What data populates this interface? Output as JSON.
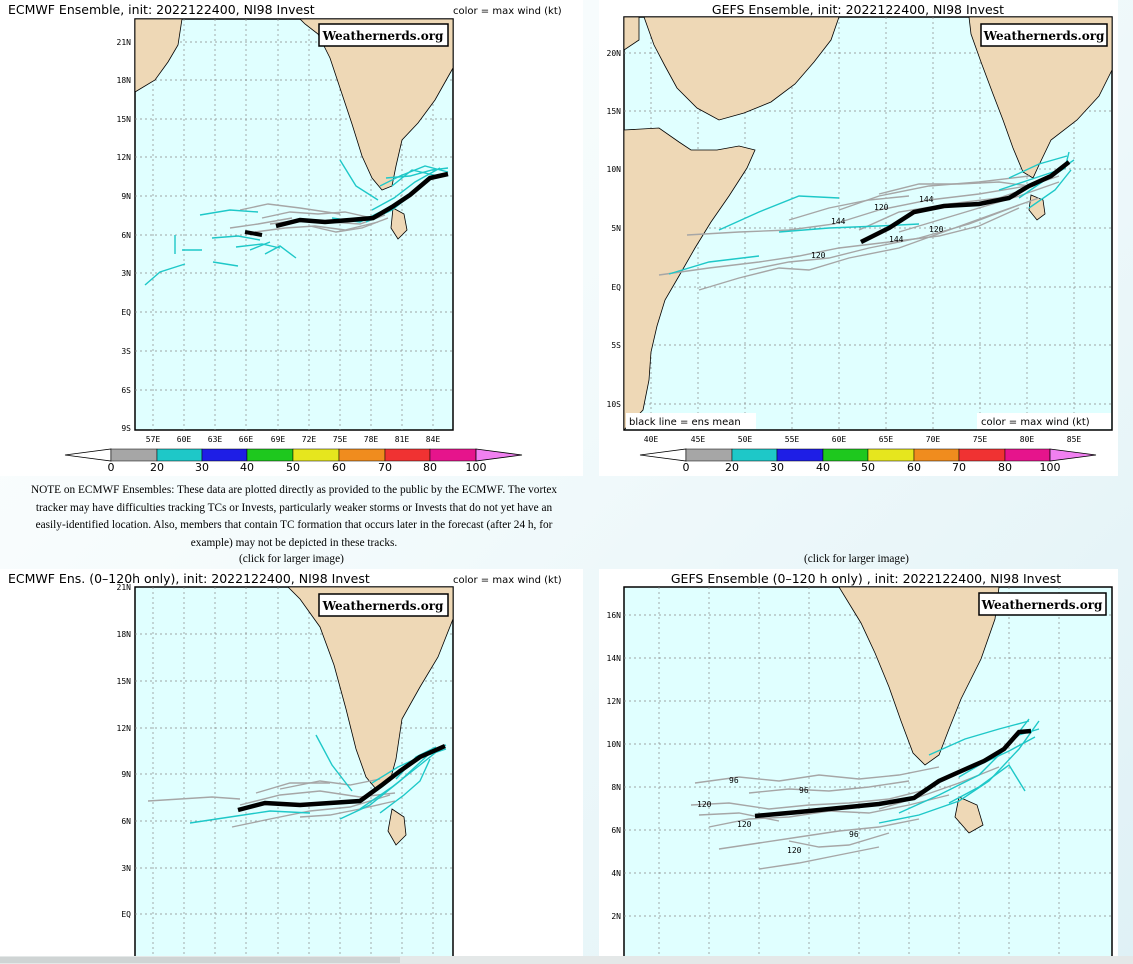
{
  "panels": [
    {
      "title": "ECMWF Ensemble, init: 2022122400, NI98 Invest",
      "legend": "color = max wind (kt)",
      "badge": "Weathernerds.org",
      "lons": [
        "57E",
        "60E",
        "63E",
        "66E",
        "69E",
        "72E",
        "75E",
        "78E",
        "81E",
        "84E"
      ],
      "lats": [
        "21N",
        "18N",
        "15N",
        "12N",
        "9N",
        "6N",
        "3N",
        "EQ",
        "3S",
        "6S",
        "9S"
      ]
    },
    {
      "title": "GEFS Ensemble, init: 2022122400, NI98 Invest",
      "badge": "Weathernerds.org",
      "mean_label": "black line = ens mean",
      "legend": "color = max wind (kt)",
      "lons": [
        "40E",
        "45E",
        "50E",
        "55E",
        "60E",
        "65E",
        "70E",
        "75E",
        "80E",
        "85E"
      ],
      "lats": [
        "20N",
        "15N",
        "10N",
        "5N",
        "EQ",
        "5S",
        "10S"
      ],
      "hour_labels": [
        "144",
        "120",
        "144",
        "120",
        "144",
        "120"
      ]
    },
    {
      "title": "ECMWF Ens. (0–120h only), init: 2022122400, NI98 Invest",
      "legend": "color = max wind (kt)",
      "badge": "Weathernerds.org",
      "lats": [
        "21N",
        "18N",
        "15N",
        "12N",
        "9N",
        "6N",
        "3N",
        "EQ"
      ]
    },
    {
      "title": "GEFS Ensemble (0–120 h only) , init: 2022122400, NI98 Invest",
      "badge": "Weathernerds.org",
      "lats": [
        "16N",
        "14N",
        "12N",
        "10N",
        "8N",
        "6N",
        "4N",
        "2N"
      ],
      "hour_labels": [
        "96",
        "120",
        "96",
        "120",
        "120",
        "96"
      ]
    }
  ],
  "colorbar": {
    "labels": [
      "0",
      "20",
      "30",
      "40",
      "50",
      "60",
      "70",
      "80",
      "100"
    ],
    "colors": [
      "#a6a6a6",
      "#1ec8c8",
      "#1e1ee6",
      "#1ec81e",
      "#e6e61e",
      "#f08c1e",
      "#f03232",
      "#e6148c",
      "#f080f0"
    ]
  },
  "note": "NOTE on ECMWF Ensembles: These data are plotted directly as provided to the public by the ECMWF. The vortex tracker may have difficulties tracking TCs or Invests, particularly weaker storms or Invests that do not yet have an easily-identified location. Also, members that contain TC formation that occurs later in the forecast (after 24 h, for example) may not be depicted in these tracks.",
  "click_left": "(click for larger image)",
  "click_right": "(click for larger image)",
  "colors": {
    "ocean": "#e0ffff",
    "land": "#eed8b6",
    "track_gray": "#a6a6a6",
    "track_cyan": "#1ec8c8",
    "mean": "#000000"
  }
}
